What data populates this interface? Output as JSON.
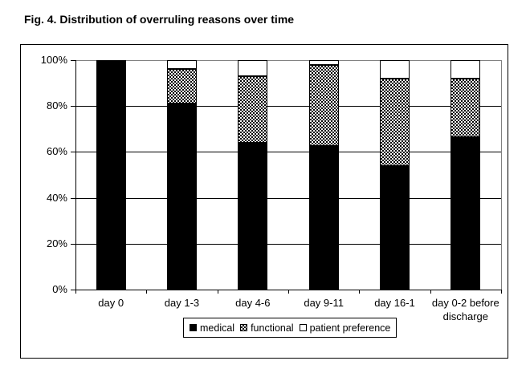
{
  "title": "Fig. 4. Distribution of overruling reasons over time",
  "chart_data": {
    "type": "bar",
    "stacked": true,
    "unit": "percent",
    "title": "Fig. 4. Distribution of overruling reasons over time",
    "categories": [
      "day 0",
      "day 1-3",
      "day 4-6",
      "day 9-11",
      "day 16-1",
      "day 0-2 before discharge"
    ],
    "series": [
      {
        "name": "medical",
        "style": "solid-black",
        "values": [
          100,
          81,
          64,
          62.5,
          54,
          66.5
        ]
      },
      {
        "name": "functional",
        "style": "checker",
        "values": [
          0,
          15,
          29,
          35.5,
          38,
          25.5
        ]
      },
      {
        "name": "patient preference",
        "style": "white",
        "values": [
          0,
          4,
          7,
          2,
          8,
          8
        ]
      }
    ],
    "xlabel": "",
    "ylabel": "",
    "ylim": [
      0,
      100
    ],
    "y_ticks": [
      "0%",
      "20%",
      "40%",
      "60%",
      "80%",
      "100%"
    ],
    "grid": "horizontal",
    "legend_position": "bottom"
  },
  "colors": {
    "bar_fill": "#000000",
    "pattern_fill": "#000000",
    "plot_border": "#808080",
    "background": "#ffffff"
  }
}
